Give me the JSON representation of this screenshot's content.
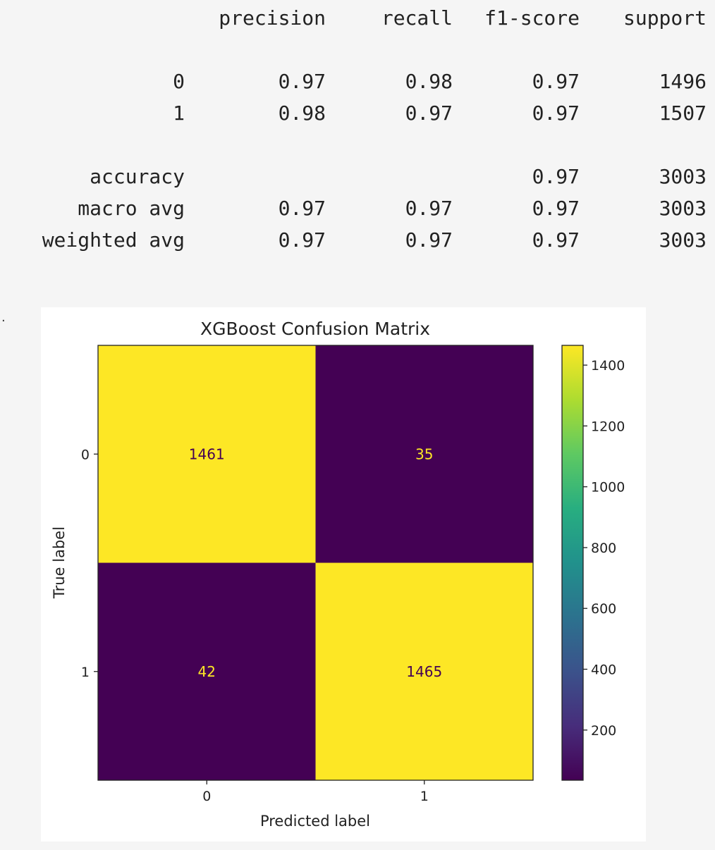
{
  "report": {
    "headers": [
      "precision",
      "recall",
      "f1-score",
      "support"
    ],
    "rows": [
      {
        "label": "0",
        "precision": "0.97",
        "recall": "0.98",
        "f1": "0.97",
        "support": "1496"
      },
      {
        "label": "1",
        "precision": "0.98",
        "recall": "0.97",
        "f1": "0.97",
        "support": "1507"
      },
      {
        "label": "accuracy",
        "precision": "",
        "recall": "",
        "f1": "0.97",
        "support": "3003"
      },
      {
        "label": "macro avg",
        "precision": "0.97",
        "recall": "0.97",
        "f1": "0.97",
        "support": "3003"
      },
      {
        "label": "weighted avg",
        "precision": "0.97",
        "recall": "0.97",
        "f1": "0.97",
        "support": "3003"
      }
    ]
  },
  "marker": ".",
  "chart_data": {
    "type": "heatmap",
    "title": "XGBoost Confusion Matrix",
    "xlabel": "Predicted label",
    "ylabel": "True label",
    "x_categories": [
      "0",
      "1"
    ],
    "y_categories": [
      "0",
      "1"
    ],
    "values": [
      [
        1461,
        35
      ],
      [
        42,
        1465
      ]
    ],
    "colorbar": {
      "ticks": [
        200,
        400,
        600,
        800,
        1000,
        1200,
        1400
      ],
      "range": [
        35,
        1465
      ],
      "colormap": "viridis"
    },
    "colors": {
      "low": "#440154",
      "high": "#fde725",
      "text_on_high": "#440154",
      "text_on_low": "#fde725"
    }
  }
}
